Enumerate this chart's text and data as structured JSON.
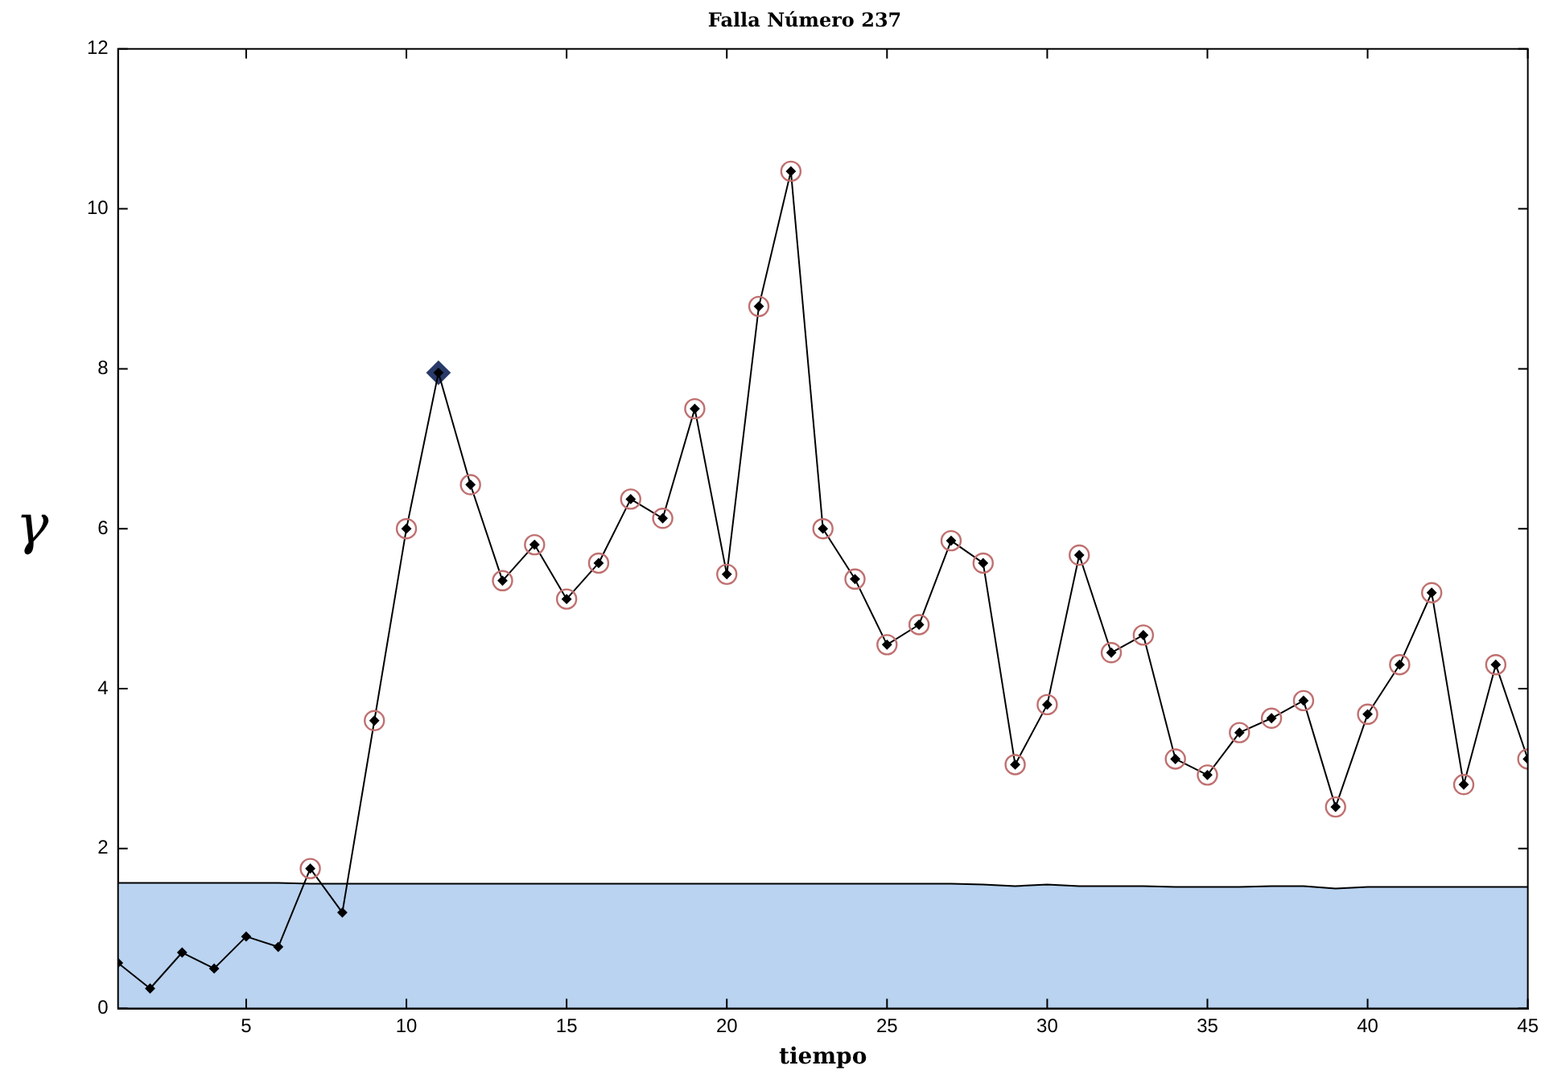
{
  "chart_data": {
    "type": "line",
    "title": "Falla Número 237",
    "xlabel": "tiempo",
    "ylabel": "γ",
    "x": [
      1,
      2,
      3,
      4,
      5,
      6,
      7,
      8,
      9,
      10,
      11,
      12,
      13,
      14,
      15,
      16,
      17,
      18,
      19,
      20,
      21,
      22,
      23,
      24,
      25,
      26,
      27,
      28,
      29,
      30,
      31,
      32,
      33,
      34,
      35,
      36,
      37,
      38,
      39,
      40,
      41,
      42,
      43,
      44,
      45
    ],
    "series": [
      {
        "type": "area",
        "color": "#b9d3f0",
        "marker": "none",
        "values": [
          1.57,
          1.57,
          1.57,
          1.57,
          1.57,
          1.57,
          1.56,
          1.56,
          1.56,
          1.56,
          1.56,
          1.56,
          1.56,
          1.56,
          1.56,
          1.56,
          1.56,
          1.56,
          1.56,
          1.56,
          1.56,
          1.56,
          1.56,
          1.56,
          1.56,
          1.56,
          1.56,
          1.55,
          1.53,
          1.55,
          1.53,
          1.53,
          1.53,
          1.52,
          1.52,
          1.52,
          1.53,
          1.53,
          1.5,
          1.52,
          1.52,
          1.52,
          1.52,
          1.52,
          1.52
        ]
      },
      {
        "color": "#000000",
        "marker": "diamond",
        "values": [
          0.57,
          0.25,
          0.7,
          0.5,
          0.9,
          0.77,
          1.75,
          1.2,
          3.6,
          6.0,
          7.95,
          6.55,
          5.35,
          5.8,
          5.12,
          5.57,
          6.37,
          6.13,
          7.5,
          5.43,
          8.78,
          10.47,
          6.0,
          5.37,
          4.55,
          4.8,
          5.85,
          5.57,
          3.05,
          3.8,
          5.67,
          4.45,
          4.67,
          3.12,
          2.92,
          3.45,
          3.63,
          3.85,
          2.52,
          3.68,
          4.3,
          5.2,
          2.8,
          4.3,
          3.12
        ]
      },
      {
        "type": "scatter",
        "color": "#c07070",
        "marker": "circle",
        "x": [
          7,
          9,
          10,
          12,
          13,
          14,
          15,
          16,
          17,
          18,
          19,
          20,
          21,
          22,
          23,
          24,
          25,
          26,
          27,
          28,
          29,
          30,
          31,
          32,
          33,
          34,
          35,
          36,
          37,
          38,
          39,
          40,
          41,
          42,
          43,
          44,
          45
        ],
        "values": [
          1.75,
          3.6,
          6.0,
          6.55,
          5.35,
          5.8,
          5.12,
          5.57,
          6.37,
          6.13,
          7.5,
          5.43,
          8.78,
          10.47,
          6.0,
          5.37,
          4.55,
          4.8,
          5.85,
          5.57,
          3.05,
          3.8,
          5.67,
          4.45,
          4.67,
          3.12,
          2.92,
          3.45,
          3.63,
          3.85,
          2.52,
          3.68,
          4.3,
          5.2,
          2.8,
          4.3,
          3.12
        ]
      },
      {
        "type": "scatter",
        "color": "#2a3a6a",
        "marker": "diamond",
        "x": [
          11
        ],
        "values": [
          7.95
        ]
      }
    ],
    "xlim": [
      1,
      45
    ],
    "xticks": [
      5,
      10,
      15,
      20,
      25,
      30,
      35,
      40,
      45
    ],
    "ylim": [
      0,
      12
    ],
    "yticks": [
      0,
      2,
      4,
      6,
      8,
      10,
      12
    ],
    "grid": false,
    "legend": false
  }
}
